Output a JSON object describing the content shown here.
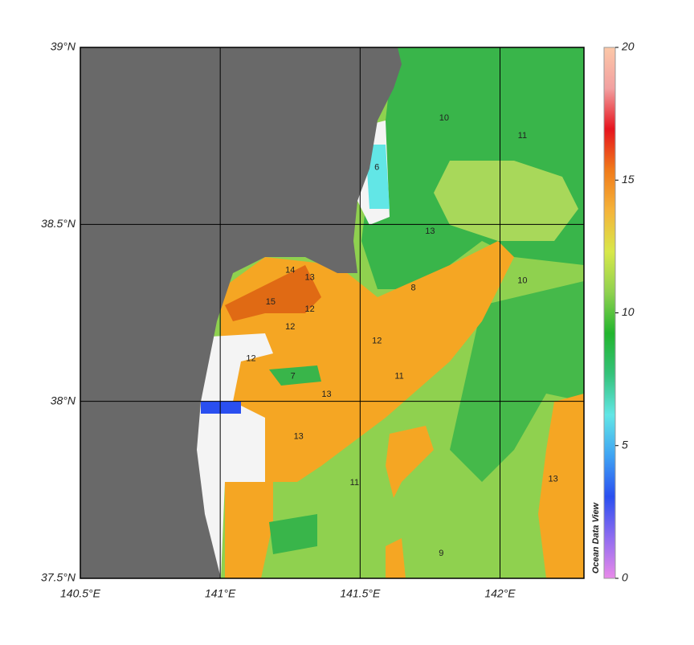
{
  "map": {
    "xlim": [
      140.5,
      142.3
    ],
    "ylim": [
      37.5,
      39
    ],
    "xticks": [
      {
        "value": 140.5,
        "label": "140.5°E"
      },
      {
        "value": 141,
        "label": "141°E"
      },
      {
        "value": 141.5,
        "label": "141.5°E"
      },
      {
        "value": 142,
        "label": "142°E"
      }
    ],
    "yticks": [
      {
        "value": 37.5,
        "label": "37.5°N"
      },
      {
        "value": 38,
        "label": "38°N"
      },
      {
        "value": 38.5,
        "label": "38.5°N"
      },
      {
        "value": 39,
        "label": "39°N"
      }
    ],
    "grid": true,
    "contour_labels": [
      {
        "value": 15,
        "lon": 141.18,
        "lat": 38.28
      },
      {
        "value": 14,
        "lon": 141.25,
        "lat": 38.37
      },
      {
        "value": 13,
        "lon": 141.32,
        "lat": 38.35
      },
      {
        "value": 12,
        "lon": 141.25,
        "lat": 38.21
      },
      {
        "value": 12,
        "lon": 141.32,
        "lat": 38.26
      },
      {
        "value": 13,
        "lon": 141.38,
        "lat": 38.02
      },
      {
        "value": 13,
        "lon": 141.28,
        "lat": 37.9
      },
      {
        "value": 12,
        "lon": 141.11,
        "lat": 38.12
      },
      {
        "value": 7,
        "lon": 141.26,
        "lat": 38.07
      },
      {
        "value": 11,
        "lon": 141.48,
        "lat": 37.77
      },
      {
        "value": 10,
        "lon": 141.8,
        "lat": 38.8
      },
      {
        "value": 11,
        "lon": 142.08,
        "lat": 38.75
      },
      {
        "value": 13,
        "lon": 141.75,
        "lat": 38.48
      },
      {
        "value": 12,
        "lon": 141.56,
        "lat": 38.17
      },
      {
        "value": 11,
        "lon": 141.64,
        "lat": 38.07
      },
      {
        "value": 13,
        "lon": 142.19,
        "lat": 37.78
      },
      {
        "value": 9,
        "lon": 141.79,
        "lat": 37.57
      },
      {
        "value": 10,
        "lon": 142.08,
        "lat": 38.34
      },
      {
        "value": 8,
        "lon": 141.69,
        "lat": 38.32
      },
      {
        "value": 6,
        "lon": 141.56,
        "lat": 38.66
      }
    ]
  },
  "colorbar": {
    "lim": [
      0,
      20
    ],
    "ticks": [
      0,
      5,
      10,
      15,
      20
    ],
    "colors": [
      "#e98ae9",
      "#8f6cf0",
      "#2a4ff0",
      "#3fa3f3",
      "#62e6e6",
      "#34c27a",
      "#22b52e",
      "#8fd14f",
      "#d8e84a",
      "#f5b43a",
      "#f07a1a",
      "#e6141e",
      "#f2a0a0",
      "#fcc8a8"
    ]
  },
  "watermark": "Ocean Data View"
}
